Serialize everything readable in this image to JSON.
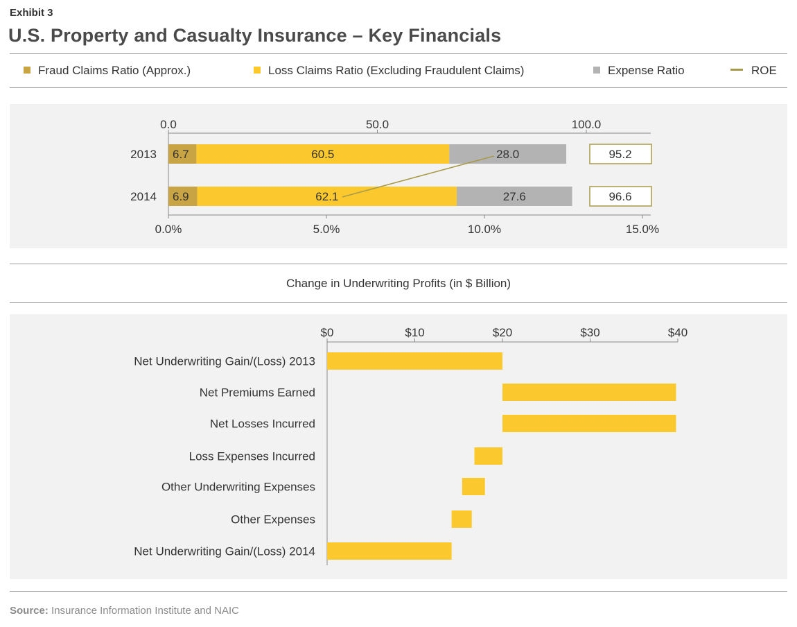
{
  "header": {
    "exhibit": "Exhibit 3",
    "title": "U.S. Property and Casualty Insurance – Key Financials"
  },
  "legend": [
    {
      "label": "Fraud Claims Ratio (Approx.)",
      "color": "#c9a445",
      "kind": "square"
    },
    {
      "label": "Loss Claims Ratio (Excluding Fraudulent Claims)",
      "color": "#fbc92e",
      "kind": "square"
    },
    {
      "label": "Expense Ratio",
      "color": "#b3b3b3",
      "kind": "square"
    },
    {
      "label": "ROE",
      "color": "#a89a4a",
      "kind": "line"
    }
  ],
  "subtitle": "Change in Underwriting Profits (in $ Billion)",
  "source": {
    "label": "Source:",
    "text": "Insurance Information Institute and NAIC"
  },
  "chart_data": [
    {
      "type": "bar",
      "stacked": true,
      "orientation": "horizontal",
      "categories": [
        "2013",
        "2014"
      ],
      "series": [
        {
          "name": "Fraud Claims Ratio (Approx.)",
          "values": [
            6.7,
            6.9
          ],
          "color": "#c9a445"
        },
        {
          "name": "Loss Claims Ratio (Excluding Fraudulent Claims)",
          "values": [
            60.5,
            62.1
          ],
          "color": "#fbc92e"
        },
        {
          "name": "Expense Ratio",
          "values": [
            28.0,
            27.6
          ],
          "color": "#b3b3b3"
        }
      ],
      "totals": [
        95.2,
        96.6
      ],
      "total_labels": [
        "95.2",
        "96.6"
      ],
      "xlim_top": [
        0,
        115
      ],
      "xticks_top": [
        0,
        50,
        100
      ],
      "xtick_labels_top": [
        "0.0",
        "50.0",
        "100.0"
      ],
      "roe": {
        "name": "ROE",
        "values": [
          10.3,
          5.5
        ],
        "color": "#a89a4a"
      },
      "xlim_bottom": [
        0,
        15
      ],
      "xticks_bottom": [
        0,
        5,
        10,
        15
      ],
      "xtick_labels_bottom": [
        "0.0%",
        "5.0%",
        "10.0%",
        "15.0%"
      ]
    },
    {
      "type": "bar",
      "subtype": "waterfall",
      "orientation": "horizontal",
      "categories": [
        "Net Underwriting Gain/(Loss) 2013",
        "Net Premiums Earned",
        "Net Losses Incurred",
        "Loss Expenses Incurred",
        "Other Underwriting Expenses",
        "Other Expenses",
        "Net Underwriting Gain/(Loss) 2014"
      ],
      "ranges": [
        [
          0,
          20
        ],
        [
          20,
          39.8
        ],
        [
          20,
          39.8
        ],
        [
          16.8,
          20
        ],
        [
          15.4,
          18
        ],
        [
          14.2,
          16.5
        ],
        [
          0,
          14.2
        ]
      ],
      "color": "#fbc92e",
      "xlim": [
        0,
        40
      ],
      "xticks": [
        0,
        10,
        20,
        30,
        40
      ],
      "xtick_labels": [
        "$0",
        "$10",
        "$20",
        "$30",
        "$40"
      ]
    }
  ]
}
